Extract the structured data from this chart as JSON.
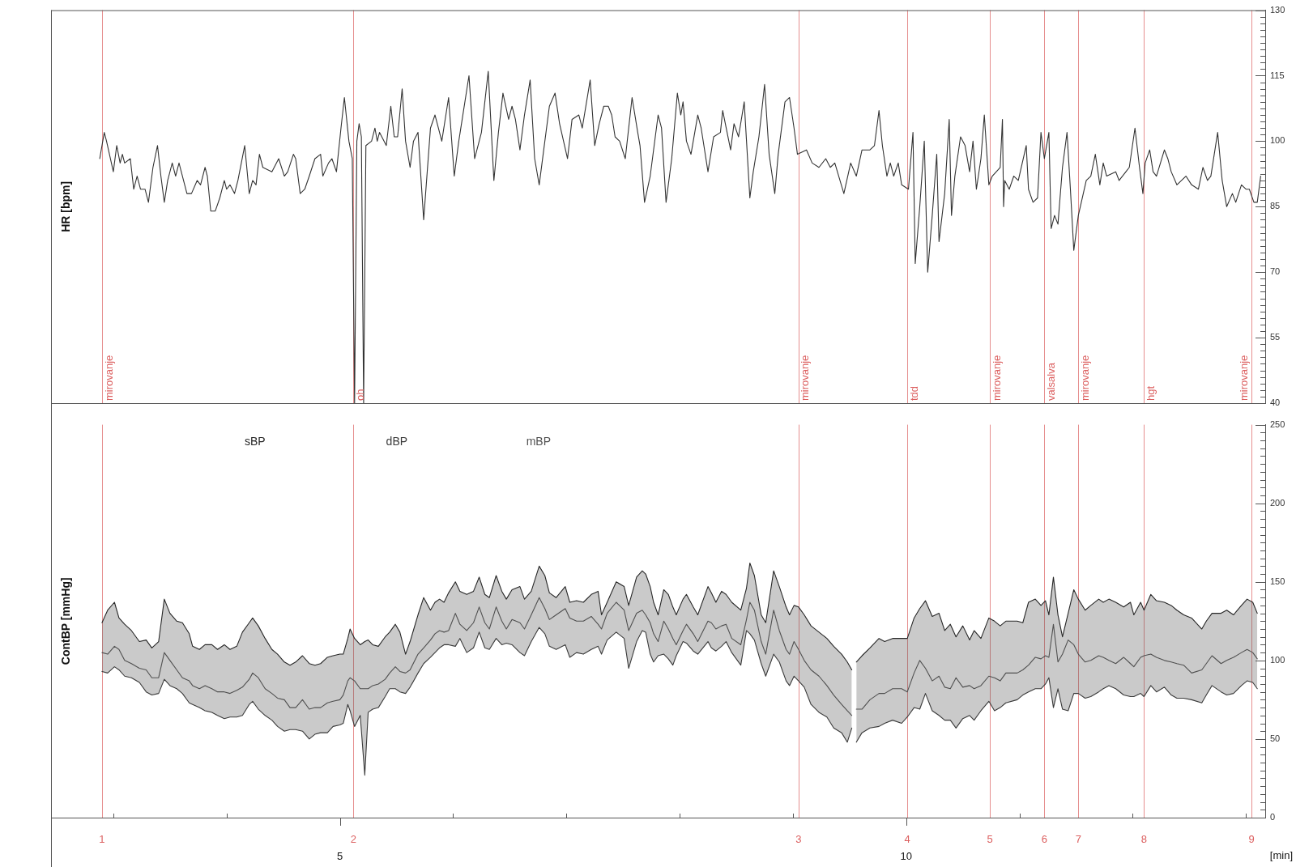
{
  "chart_data": [
    {
      "type": "line",
      "ylabel": "HR [bpm]",
      "tick_labels": "y",
      "xlim": [
        2.45,
        13.17
      ],
      "ylim": [
        40,
        130
      ],
      "yticks": [
        40,
        {
          "value": 41.5,
          "label": null
        },
        {
          "value": 43,
          "label": null
        },
        {
          "value": 44.5,
          "label": null
        },
        {
          "value": 46,
          "label": null
        },
        {
          "value": 47.5,
          "label": null
        },
        {
          "value": 49,
          "label": null
        },
        {
          "value": 50.5,
          "label": null
        },
        {
          "value": 52,
          "label": null
        },
        {
          "value": 53.5,
          "label": null
        },
        55,
        {
          "value": 56.5,
          "label": null
        },
        {
          "value": 58,
          "label": null
        },
        {
          "value": 59.5,
          "label": null
        },
        {
          "value": 61,
          "label": null
        },
        {
          "value": 62.5,
          "label": null
        },
        {
          "value": 64,
          "label": null
        },
        {
          "value": 65.5,
          "label": null
        },
        {
          "value": 67,
          "label": null
        },
        {
          "value": 68.5,
          "label": null
        },
        70,
        {
          "value": 71.5,
          "label": null
        },
        {
          "value": 73,
          "label": null
        },
        {
          "value": 74.5,
          "label": null
        },
        {
          "value": 76,
          "label": null
        },
        {
          "value": 77.5,
          "label": null
        },
        {
          "value": 79,
          "label": null
        },
        {
          "value": 80.5,
          "label": null
        },
        {
          "value": 82,
          "label": null
        },
        {
          "value": 83.5,
          "label": null
        },
        85,
        {
          "value": 86.5,
          "label": null
        },
        {
          "value": 88,
          "label": null
        },
        {
          "value": 89.5,
          "label": null
        },
        {
          "value": 91,
          "label": null
        },
        {
          "value": 92.5,
          "label": null
        },
        {
          "value": 94,
          "label": null
        },
        {
          "value": 95.5,
          "label": null
        },
        {
          "value": 97,
          "label": null
        },
        {
          "value": 98.5,
          "label": null
        },
        100,
        {
          "value": 101.5,
          "label": null
        },
        {
          "value": 103,
          "label": null
        },
        {
          "value": 104.5,
          "label": null
        },
        {
          "value": 106,
          "label": null
        },
        {
          "value": 107.5,
          "label": null
        },
        {
          "value": 109,
          "label": null
        },
        {
          "value": 110.5,
          "label": null
        },
        {
          "value": 112,
          "label": null
        },
        {
          "value": 113.5,
          "label": null
        },
        115,
        {
          "value": 116.5,
          "label": null
        },
        {
          "value": 118,
          "label": null
        },
        {
          "value": 119.5,
          "label": null
        },
        {
          "value": 121,
          "label": null
        },
        {
          "value": 122.5,
          "label": null
        },
        {
          "value": 124,
          "label": null
        },
        {
          "value": 125.5,
          "label": null
        },
        {
          "value": 127,
          "label": null
        },
        {
          "value": 128.5,
          "label": null
        },
        130
      ],
      "x": [
        2.88,
        2.92,
        2.94,
        3.0,
        3.03,
        3.06,
        3.08,
        3.1,
        3.15,
        3.18,
        3.21,
        3.24,
        3.28,
        3.31,
        3.35,
        3.39,
        3.42,
        3.45,
        3.48,
        3.52,
        3.55,
        3.58,
        3.65,
        3.69,
        3.74,
        3.77,
        3.81,
        3.83,
        3.86,
        3.9,
        3.94,
        3.98,
        4.0,
        4.03,
        4.07,
        4.1,
        4.16,
        4.2,
        4.23,
        4.26,
        4.29,
        4.32,
        4.4,
        4.46,
        4.51,
        4.54,
        4.59,
        4.61,
        4.65,
        4.69,
        4.73,
        4.78,
        4.83,
        4.85,
        4.9,
        4.93,
        4.97,
        5.01,
        5.04,
        5.08,
        5.11,
        5.13,
        5.15,
        5.17,
        5.19,
        5.21,
        5.23,
        5.28,
        5.31,
        5.33,
        5.35,
        5.41,
        5.45,
        5.48,
        5.51,
        5.55,
        5.58,
        5.62,
        5.65,
        5.69,
        5.74,
        5.8,
        5.84,
        5.87,
        5.9,
        5.96,
        6.01,
        6.05,
        6.14,
        6.19,
        6.22,
        6.25,
        6.31,
        6.36,
        6.4,
        6.44,
        6.49,
        6.52,
        6.55,
        6.59,
        6.63,
        6.68,
        6.72,
        6.76,
        6.8,
        6.85,
        6.9,
        6.94,
        7.01,
        7.05,
        7.11,
        7.14,
        7.21,
        7.25,
        7.29,
        7.33,
        7.37,
        7.4,
        7.43,
        7.47,
        7.52,
        7.58,
        7.63,
        7.65,
        7.69,
        7.74,
        7.81,
        7.84,
        7.88,
        7.93,
        7.98,
        8.01,
        8.03,
        8.06,
        8.1,
        8.16,
        8.19,
        8.25,
        8.3,
        8.36,
        8.38,
        8.45,
        8.48,
        8.52,
        8.57,
        8.62,
        8.65,
        8.7,
        8.75,
        8.79,
        8.84,
        8.87,
        8.93,
        8.97,
        9.01,
        9.04,
        9.12,
        9.17,
        9.23,
        9.29,
        9.33,
        9.37,
        9.45,
        9.51,
        9.56,
        9.61,
        9.68,
        9.72,
        9.76,
        9.79,
        9.83,
        9.86,
        9.89,
        9.93,
        9.96,
        10.02,
        10.06,
        10.08,
        10.12,
        10.16,
        10.19,
        10.23,
        10.27,
        10.29,
        10.34,
        10.38,
        10.4,
        10.43,
        10.48,
        10.52,
        10.56,
        10.59,
        10.62,
        10.66,
        10.69,
        10.73,
        10.76,
        10.83,
        10.85,
        10.86,
        10.87,
        10.91,
        10.95,
        10.99,
        11.06,
        11.08,
        11.12,
        11.16,
        11.19,
        11.22,
        11.26,
        11.28,
        11.31,
        11.34,
        11.38,
        11.42,
        11.45,
        11.48,
        11.52,
        11.59,
        11.63,
        11.67,
        11.71,
        11.74,
        11.77,
        11.85,
        11.88,
        11.94,
        11.97,
        12.02,
        12.06,
        12.09,
        12.11,
        12.15,
        12.18,
        12.21,
        12.28,
        12.31,
        12.34,
        12.39,
        12.47,
        12.52,
        12.58,
        12.62,
        12.66,
        12.69,
        12.75,
        12.79,
        12.83,
        12.88,
        12.91,
        12.96,
        13.0,
        13.03,
        13.07,
        13.1,
        13.13
      ],
      "series": [
        {
          "color": "#333333",
          "values": [
            96,
            102,
            100,
            93,
            99,
            95,
            97,
            95,
            96,
            89,
            92,
            89,
            89,
            86,
            94,
            99,
            92,
            86,
            91,
            95,
            92,
            95,
            88,
            88,
            91,
            90,
            94,
            92,
            84,
            84,
            87,
            91,
            89,
            90,
            88,
            91,
            99,
            88,
            91,
            90,
            97,
            94,
            93,
            96,
            92,
            93,
            97,
            96,
            88,
            89,
            92,
            96,
            97,
            92,
            95,
            96,
            93,
            103,
            110,
            100,
            96,
            40,
            100,
            104,
            101,
            40,
            99,
            100,
            103,
            100,
            102,
            99,
            108,
            101,
            101,
            112,
            100,
            94,
            100,
            102,
            82,
            103,
            106,
            103,
            100,
            110,
            92,
            100,
            115,
            96,
            99,
            102,
            116,
            91,
            102,
            111,
            105,
            108,
            105,
            98,
            106,
            114,
            96,
            90,
            98,
            108,
            111,
            104,
            96,
            105,
            106,
            103,
            114,
            99,
            104,
            108,
            108,
            106,
            101,
            100,
            96,
            110,
            102,
            99,
            86,
            92,
            106,
            103,
            86,
            96,
            111,
            106,
            109,
            100,
            97,
            106,
            103,
            93,
            101,
            102,
            107,
            98,
            104,
            101,
            109,
            87,
            93,
            101,
            113,
            97,
            88,
            97,
            109,
            110,
            103,
            97,
            98,
            95,
            94,
            96,
            94,
            95,
            88,
            95,
            92,
            98,
            98,
            99,
            107,
            99,
            92,
            95,
            92,
            95,
            90,
            89,
            102,
            72,
            85,
            100,
            70,
            83,
            97,
            77,
            88,
            105,
            83,
            92,
            101,
            99,
            93,
            100,
            89,
            96,
            106,
            90,
            92,
            94,
            105,
            85,
            91,
            89,
            92,
            91,
            99,
            89,
            86,
            87,
            102,
            96,
            102,
            80,
            83,
            81,
            94,
            102,
            89,
            75,
            83,
            91,
            92,
            97,
            90,
            95,
            92,
            93,
            91,
            93,
            94,
            103,
            94,
            88,
            95,
            98,
            93,
            92,
            98,
            96,
            93,
            90,
            92,
            90,
            89,
            94,
            91,
            92,
            102,
            91,
            85,
            88,
            86,
            90,
            89,
            89,
            86,
            86,
            92
          ]
        }
      ],
      "ref_lines": [
        {
          "axis": "x",
          "value": 2.9,
          "label": "mirovanje",
          "color": "#dc6060"
        },
        {
          "axis": "x",
          "value": 5.12,
          "label": "oh",
          "color": "#dc6060"
        },
        {
          "axis": "x",
          "value": 9.05,
          "label": "mirovanje",
          "color": "#dc6060"
        },
        {
          "axis": "x",
          "value": 10.01,
          "label": "tdd",
          "color": "#dc6060"
        },
        {
          "axis": "x",
          "value": 10.74,
          "label": "mirovanje",
          "color": "#dc6060"
        },
        {
          "axis": "x",
          "value": 11.22,
          "label": "valsalva",
          "color": "#dc6060"
        },
        {
          "axis": "x",
          "value": 11.52,
          "label": "mirovanje",
          "color": "#dc6060"
        },
        {
          "axis": "x",
          "value": 12.1,
          "label": "hgt",
          "color": "#dc6060"
        },
        {
          "axis": "x",
          "value": 13.05,
          "label": "mirovanje",
          "color": "#dc6060"
        }
      ]
    },
    {
      "type": "line",
      "ylabel": "ContBP [mmHg]",
      "xlabel": "[min]",
      "legend": "top left",
      "xlim": [
        2.45,
        13.17
      ],
      "ylim": [
        0,
        250
      ],
      "xticks": [
        {
          "value": 3,
          "label": null
        },
        {
          "value": 4,
          "label": null
        },
        5,
        {
          "value": 6,
          "label": null
        },
        {
          "value": 7,
          "label": null
        },
        {
          "value": 8,
          "label": null
        },
        {
          "value": 9,
          "label": null
        },
        10,
        {
          "value": 11,
          "label": null
        },
        {
          "value": 12,
          "label": null
        },
        {
          "value": 13,
          "label": null
        }
      ],
      "yticks": [
        0,
        {
          "value": 5,
          "label": null
        },
        {
          "value": 10,
          "label": null
        },
        {
          "value": 15,
          "label": null
        },
        {
          "value": 20,
          "label": null
        },
        {
          "value": 25,
          "label": null
        },
        {
          "value": 30,
          "label": null
        },
        {
          "value": 35,
          "label": null
        },
        {
          "value": 40,
          "label": null
        },
        {
          "value": 45,
          "label": null
        },
        50,
        {
          "value": 55,
          "label": null
        },
        {
          "value": 60,
          "label": null
        },
        {
          "value": 65,
          "label": null
        },
        {
          "value": 70,
          "label": null
        },
        {
          "value": 75,
          "label": null
        },
        {
          "value": 80,
          "label": null
        },
        {
          "value": 85,
          "label": null
        },
        {
          "value": 90,
          "label": null
        },
        {
          "value": 95,
          "label": null
        },
        100,
        {
          "value": 105,
          "label": null
        },
        {
          "value": 110,
          "label": null
        },
        {
          "value": 115,
          "label": null
        },
        {
          "value": 120,
          "label": null
        },
        {
          "value": 125,
          "label": null
        },
        {
          "value": 130,
          "label": null
        },
        {
          "value": 135,
          "label": null
        },
        {
          "value": 140,
          "label": null
        },
        {
          "value": 145,
          "label": null
        },
        150,
        {
          "value": 155,
          "label": null
        },
        {
          "value": 160,
          "label": null
        },
        {
          "value": 165,
          "label": null
        },
        {
          "value": 170,
          "label": null
        },
        {
          "value": 175,
          "label": null
        },
        {
          "value": 180,
          "label": null
        },
        {
          "value": 185,
          "label": null
        },
        {
          "value": 190,
          "label": null
        },
        {
          "value": 195,
          "label": null
        },
        200,
        {
          "value": 205,
          "label": null
        },
        {
          "value": 210,
          "label": null
        },
        {
          "value": 215,
          "label": null
        },
        {
          "value": 220,
          "label": null
        },
        {
          "value": 225,
          "label": null
        },
        {
          "value": 230,
          "label": null
        },
        {
          "value": 235,
          "label": null
        },
        {
          "value": 240,
          "label": null
        },
        {
          "value": 245,
          "label": null
        },
        250
      ],
      "x": [
        2.9,
        2.95,
        3.01,
        3.05,
        3.1,
        3.16,
        3.23,
        3.29,
        3.34,
        3.4,
        3.45,
        3.5,
        3.56,
        3.61,
        3.67,
        3.7,
        3.76,
        3.81,
        3.87,
        3.92,
        3.98,
        4.03,
        4.09,
        4.14,
        4.2,
        4.23,
        4.28,
        4.34,
        4.4,
        4.45,
        4.51,
        4.56,
        4.61,
        4.67,
        4.73,
        4.78,
        4.83,
        4.89,
        4.94,
        5.0,
        5.03,
        5.07,
        5.09,
        5.13,
        5.18,
        5.22,
        5.25,
        5.29,
        5.34,
        5.4,
        5.44,
        5.49,
        5.53,
        5.58,
        5.62,
        5.69,
        5.74,
        5.8,
        5.84,
        5.88,
        5.92,
        5.96,
        6.02,
        6.06,
        6.12,
        6.18,
        6.23,
        6.28,
        6.32,
        6.38,
        6.43,
        6.47,
        6.52,
        6.59,
        6.63,
        6.69,
        6.76,
        6.81,
        6.85,
        6.91,
        6.99,
        7.03,
        7.09,
        7.15,
        7.22,
        7.28,
        7.31,
        7.36,
        7.44,
        7.51,
        7.55,
        7.62,
        7.67,
        7.7,
        7.74,
        7.77,
        7.81,
        7.86,
        7.9,
        7.94,
        7.97,
        8.03,
        8.06,
        8.12,
        8.16,
        8.25,
        8.28,
        8.32,
        8.37,
        8.41,
        8.46,
        8.54,
        8.59,
        8.62,
        8.66,
        8.72,
        8.76,
        8.83,
        8.88,
        8.94,
        8.97,
        9.01,
        9.05,
        9.1,
        9.16,
        9.23,
        9.3,
        9.36,
        9.43,
        9.48,
        9.52,
        9.54,
        9.56,
        9.61,
        9.68,
        9.76,
        9.81,
        9.88,
        9.96,
        10.01,
        10.07,
        10.12,
        10.17,
        10.23,
        10.29,
        10.34,
        10.39,
        10.44,
        10.5,
        10.56,
        10.6,
        10.66,
        10.73,
        10.78,
        10.83,
        10.88,
        10.98,
        11.03,
        11.08,
        11.14,
        11.19,
        11.23,
        11.26,
        11.3,
        11.34,
        11.38,
        11.43,
        11.48,
        11.52,
        11.58,
        11.63,
        11.7,
        11.74,
        11.79,
        11.85,
        11.92,
        11.98,
        12.01,
        12.07,
        12.1,
        12.16,
        12.21,
        12.28,
        12.34,
        12.39,
        12.45,
        12.52,
        12.61,
        12.65,
        12.7,
        12.78,
        12.83,
        12.89,
        12.96,
        13.01,
        13.06,
        13.1
      ],
      "series": [
        {
          "name": "sBP",
          "color": "#262626",
          "values": [
            124,
            132,
            137,
            127,
            123,
            119,
            112,
            113,
            108,
            112,
            139,
            130,
            125,
            124,
            117,
            109,
            107,
            110,
            110,
            107,
            110,
            107,
            109,
            118,
            124,
            127,
            122,
            114,
            107,
            104,
            99,
            97,
            99,
            103,
            98,
            97,
            98,
            102,
            103,
            104,
            104,
            114,
            120,
            114,
            110,
            112,
            113,
            110,
            109,
            115,
            118,
            123,
            118,
            104,
            112,
            129,
            140,
            132,
            137,
            139,
            137,
            143,
            150,
            144,
            142,
            144,
            153,
            142,
            140,
            154,
            144,
            139,
            145,
            147,
            139,
            144,
            160,
            154,
            143,
            140,
            147,
            137,
            138,
            137,
            142,
            144,
            129,
            137,
            150,
            147,
            135,
            153,
            157,
            155,
            147,
            137,
            129,
            145,
            142,
            134,
            129,
            139,
            142,
            134,
            129,
            147,
            143,
            137,
            144,
            142,
            137,
            132,
            146,
            162,
            154,
            129,
            124,
            157,
            147,
            134,
            129,
            135,
            134,
            129,
            122,
            118,
            114,
            109,
            104,
            99,
            94,
            null,
            99,
            103,
            108,
            114,
            112,
            114,
            114,
            114,
            127,
            133,
            138,
            128,
            130,
            119,
            123,
            115,
            122,
            113,
            119,
            114,
            127,
            125,
            122,
            125,
            125,
            124,
            137,
            139,
            135,
            138,
            129,
            153,
            129,
            115,
            130,
            145,
            139,
            132,
            135,
            139,
            137,
            139,
            137,
            134,
            137,
            129,
            137,
            132,
            142,
            138,
            137,
            135,
            132,
            129,
            127,
            120,
            125,
            130,
            130,
            132,
            129,
            135,
            139,
            137,
            130
          ]
        },
        {
          "name": "dBP",
          "color": "#3a3a3a",
          "values": [
            93,
            92,
            96,
            94,
            90,
            89,
            86,
            80,
            78,
            79,
            88,
            84,
            82,
            79,
            73,
            72,
            70,
            68,
            67,
            65,
            63,
            64,
            64,
            65,
            72,
            74,
            69,
            65,
            62,
            58,
            55,
            56,
            56,
            55,
            50,
            53,
            54,
            54,
            58,
            59,
            60,
            72,
            68,
            58,
            65,
            27,
            67,
            69,
            70,
            77,
            82,
            82,
            80,
            79,
            83,
            92,
            98,
            102,
            105,
            108,
            110,
            110,
            109,
            114,
            105,
            108,
            118,
            108,
            107,
            114,
            110,
            111,
            110,
            105,
            103,
            112,
            121,
            117,
            109,
            107,
            110,
            102,
            105,
            104,
            107,
            109,
            104,
            113,
            118,
            114,
            95,
            112,
            119,
            118,
            104,
            99,
            103,
            104,
            101,
            97,
            103,
            112,
            111,
            106,
            104,
            112,
            108,
            106,
            109,
            112,
            105,
            97,
            119,
            117,
            113,
            98,
            90,
            104,
            99,
            87,
            84,
            90,
            87,
            83,
            72,
            67,
            64,
            57,
            54,
            48,
            57,
            null,
            48,
            54,
            57,
            58,
            60,
            62,
            60,
            64,
            70,
            69,
            79,
            68,
            65,
            62,
            62,
            57,
            63,
            65,
            62,
            68,
            74,
            68,
            70,
            73,
            75,
            78,
            80,
            82,
            82,
            85,
            89,
            70,
            82,
            69,
            68,
            79,
            79,
            76,
            77,
            80,
            82,
            84,
            82,
            78,
            77,
            77,
            79,
            77,
            84,
            80,
            83,
            78,
            76,
            76,
            75,
            73,
            78,
            84,
            80,
            78,
            79,
            84,
            87,
            86,
            82
          ]
        },
        {
          "name": "mBP",
          "color": "#505050",
          "values": [
            105,
            104,
            109,
            107,
            100,
            98,
            95,
            94,
            89,
            89,
            105,
            100,
            94,
            89,
            87,
            84,
            82,
            84,
            82,
            80,
            80,
            79,
            81,
            83,
            88,
            92,
            89,
            82,
            79,
            76,
            75,
            70,
            70,
            75,
            69,
            70,
            70,
            73,
            74,
            75,
            78,
            87,
            89,
            87,
            82,
            82,
            82,
            84,
            85,
            88,
            92,
            96,
            93,
            92,
            94,
            104,
            108,
            113,
            117,
            119,
            118,
            119,
            130,
            123,
            119,
            124,
            134,
            124,
            120,
            134,
            125,
            120,
            126,
            124,
            120,
            129,
            140,
            133,
            126,
            129,
            133,
            127,
            125,
            125,
            128,
            123,
            120,
            130,
            137,
            132,
            119,
            130,
            132,
            129,
            124,
            117,
            112,
            125,
            120,
            114,
            110,
            119,
            123,
            117,
            112,
            125,
            124,
            120,
            122,
            123,
            114,
            110,
            126,
            137,
            132,
            112,
            104,
            132,
            119,
            107,
            104,
            112,
            107,
            100,
            94,
            90,
            84,
            78,
            72,
            68,
            65,
            null,
            69,
            69,
            75,
            79,
            79,
            82,
            82,
            80,
            92,
            100,
            95,
            87,
            90,
            83,
            82,
            89,
            83,
            84,
            82,
            84,
            90,
            89,
            87,
            92,
            92,
            94,
            97,
            102,
            101,
            103,
            102,
            123,
            99,
            104,
            113,
            110,
            104,
            99,
            100,
            103,
            102,
            100,
            98,
            102,
            98,
            96,
            102,
            103,
            104,
            102,
            100,
            99,
            98,
            97,
            92,
            94,
            98,
            103,
            98,
            100,
            102,
            105,
            107,
            105,
            101
          ],
          "lower": [
            93,
            92,
            96,
            94,
            90,
            89,
            86,
            80,
            78,
            79,
            88,
            84,
            82,
            79,
            73,
            72,
            70,
            68,
            67,
            65,
            63,
            64,
            64,
            65,
            72,
            74,
            69,
            65,
            62,
            58,
            55,
            56,
            56,
            55,
            50,
            53,
            54,
            54,
            58,
            59,
            60,
            72,
            68,
            58,
            65,
            27,
            67,
            69,
            70,
            77,
            82,
            82,
            80,
            79,
            83,
            92,
            98,
            102,
            105,
            108,
            110,
            110,
            109,
            114,
            105,
            108,
            118,
            108,
            107,
            114,
            110,
            111,
            110,
            105,
            103,
            112,
            121,
            117,
            109,
            107,
            110,
            102,
            105,
            104,
            107,
            109,
            104,
            113,
            118,
            114,
            95,
            112,
            119,
            118,
            104,
            99,
            103,
            104,
            101,
            97,
            103,
            112,
            111,
            106,
            104,
            112,
            108,
            106,
            109,
            112,
            105,
            97,
            119,
            117,
            113,
            98,
            90,
            104,
            99,
            87,
            84,
            90,
            87,
            83,
            72,
            67,
            64,
            57,
            54,
            48,
            57,
            null,
            48,
            54,
            57,
            58,
            60,
            62,
            60,
            64,
            70,
            69,
            79,
            68,
            65,
            62,
            62,
            57,
            63,
            65,
            62,
            68,
            74,
            68,
            70,
            73,
            75,
            78,
            80,
            82,
            82,
            85,
            89,
            70,
            82,
            69,
            68,
            79,
            79,
            76,
            77,
            80,
            82,
            84,
            82,
            78,
            77,
            77,
            79,
            77,
            84,
            80,
            83,
            78,
            76,
            76,
            75,
            73,
            78,
            84,
            80,
            78,
            79,
            84,
            87,
            86,
            82
          ],
          "upper": [
            124,
            132,
            137,
            127,
            123,
            119,
            112,
            113,
            108,
            112,
            139,
            130,
            125,
            124,
            117,
            109,
            107,
            110,
            110,
            107,
            110,
            107,
            109,
            118,
            124,
            127,
            122,
            114,
            107,
            104,
            99,
            97,
            99,
            103,
            98,
            97,
            98,
            102,
            103,
            104,
            104,
            114,
            120,
            114,
            110,
            112,
            113,
            110,
            109,
            115,
            118,
            123,
            118,
            104,
            112,
            129,
            140,
            132,
            137,
            139,
            137,
            143,
            150,
            144,
            142,
            144,
            153,
            142,
            140,
            154,
            144,
            139,
            145,
            147,
            139,
            144,
            160,
            154,
            143,
            140,
            147,
            137,
            138,
            137,
            142,
            144,
            129,
            137,
            150,
            147,
            135,
            153,
            157,
            155,
            147,
            137,
            129,
            145,
            142,
            134,
            129,
            139,
            142,
            134,
            129,
            147,
            143,
            137,
            144,
            142,
            137,
            132,
            146,
            162,
            154,
            129,
            124,
            157,
            147,
            134,
            129,
            135,
            134,
            129,
            122,
            118,
            114,
            109,
            104,
            99,
            94,
            null,
            99,
            103,
            108,
            114,
            112,
            114,
            114,
            114,
            127,
            133,
            138,
            128,
            130,
            119,
            123,
            115,
            122,
            113,
            119,
            114,
            127,
            125,
            122,
            125,
            125,
            124,
            137,
            139,
            135,
            138,
            129,
            153,
            129,
            115,
            130,
            145,
            139,
            132,
            135,
            139,
            137,
            139,
            137,
            134,
            137,
            129,
            137,
            132,
            142,
            138,
            137,
            135,
            132,
            129,
            127,
            120,
            125,
            130,
            130,
            132,
            129,
            135,
            139,
            137,
            130
          ]
        }
      ],
      "ref_lines": [
        {
          "axis": "x",
          "value": 2.9,
          "color": "#dc6060"
        },
        {
          "axis": "x",
          "value": 5.12,
          "color": "#dc6060"
        },
        {
          "axis": "x",
          "value": 9.05,
          "color": "#dc6060"
        },
        {
          "axis": "x",
          "value": 10.01,
          "color": "#dc6060"
        },
        {
          "axis": "x",
          "value": 10.74,
          "color": "#dc6060"
        },
        {
          "axis": "x",
          "value": 11.22,
          "color": "#dc6060"
        },
        {
          "axis": "x",
          "value": 11.52,
          "color": "#dc6060"
        },
        {
          "axis": "x",
          "value": 12.1,
          "color": "#dc6060"
        },
        {
          "axis": "x",
          "value": 13.05,
          "color": "#dc6060"
        }
      ],
      "annotations": [
        "1",
        "2",
        "3",
        "4",
        "5",
        "6",
        "7",
        "8",
        "9"
      ]
    }
  ]
}
